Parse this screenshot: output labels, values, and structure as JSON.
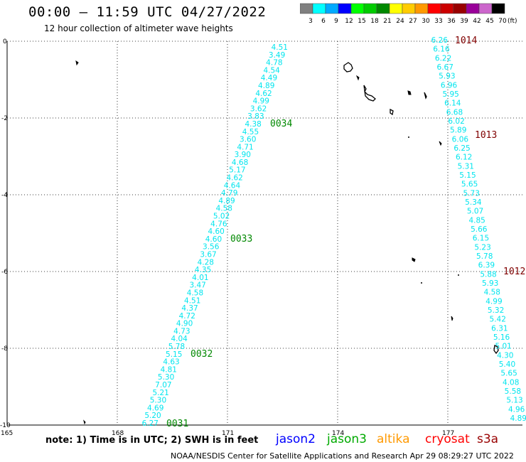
{
  "header": {
    "title": "00:00 — 11:59 UTC 04/27/2022",
    "subtitle": "12 hour collection of altimeter wave heights"
  },
  "color_scale": {
    "unit": "(ft)",
    "bins": [
      {
        "label": "3",
        "color": "#808080"
      },
      {
        "label": "6",
        "color": "#00ffff"
      },
      {
        "label": "9",
        "color": "#00aaff"
      },
      {
        "label": "12",
        "color": "#0000ff"
      },
      {
        "label": "15",
        "color": "#00ff00"
      },
      {
        "label": "18",
        "color": "#00cc00"
      },
      {
        "label": "21",
        "color": "#008800"
      },
      {
        "label": "24",
        "color": "#ffff00"
      },
      {
        "label": "27",
        "color": "#ffcc00"
      },
      {
        "label": "30",
        "color": "#ff9900"
      },
      {
        "label": "33",
        "color": "#ff0000"
      },
      {
        "label": "36",
        "color": "#cc0000"
      },
      {
        "label": "39",
        "color": "#990000"
      },
      {
        "label": "42",
        "color": "#990099"
      },
      {
        "label": "45",
        "color": "#cc66cc"
      },
      {
        "label": "70",
        "color": "#000000"
      }
    ]
  },
  "map": {
    "x_ticks": [
      "165",
      "168",
      "171",
      "174",
      "177"
    ],
    "y_ticks": [
      "0",
      "-2",
      "-4",
      "-6",
      "-8",
      "-10"
    ],
    "track_color": "#00e5ee",
    "time_label_color": "#008800",
    "pass_label_color": "#800000",
    "track_left": {
      "values": [
        "4.51",
        "3.49",
        "4.78",
        "4.54",
        "4.49",
        "4.89",
        "4.62",
        "4.99",
        "3.62",
        "3.83",
        "4.38",
        "4.55",
        "3.60",
        "4.71",
        "3.90",
        "4.68",
        "5.17",
        "4.62",
        "4.64",
        "4.79",
        "4.89",
        "4.58",
        "5.02",
        "4.76",
        "4.60",
        "4.60",
        "3.56",
        "3.67",
        "4.28",
        "4.35",
        "4.01",
        "3.47",
        "4.58",
        "4.51",
        "4.37",
        "4.72",
        "4.90",
        "4.73",
        "4.04",
        "5.78",
        "5.15",
        "4.63",
        "4.81",
        "5.30",
        "7.07",
        "5.21",
        "5.30",
        "4.69",
        "5.20",
        "6.27"
      ],
      "time_labels": [
        "0034",
        "0033",
        "0032",
        "0031"
      ]
    },
    "track_right": {
      "values": [
        "6.26",
        "6.16",
        "6.22",
        "6.67",
        "5.93",
        "6.96",
        "5.95",
        "6.14",
        "6.68",
        "6.02",
        "5.89",
        "6.06",
        "6.25",
        "6.12",
        "5.31",
        "5.15",
        "5.65",
        "5.73",
        "5.34",
        "5.07",
        "4.85",
        "5.66",
        "6.15",
        "5.23",
        "5.78",
        "6.39",
        "5.88",
        "5.93",
        "4.58",
        "4.99",
        "5.32",
        "5.42",
        "6.31",
        "5.16",
        "5.01",
        "4.30",
        "5.40",
        "5.65",
        "4.08",
        "5.58",
        "5.13",
        "4.96",
        "4.89"
      ],
      "time_labels": [
        "1014",
        "1013",
        "1012"
      ]
    }
  },
  "footer": {
    "note": "note: 1) Time is in UTC; 2) SWH is in feet",
    "satellites": [
      {
        "label": "jason2",
        "color": "#0000ff"
      },
      {
        "label": "jason3",
        "color": "#00aa00"
      },
      {
        "label": "altika",
        "color": "#ff9900"
      },
      {
        "label": "cryosat",
        "color": "#ff0000"
      },
      {
        "label": "s3a",
        "color": "#990000"
      }
    ],
    "credit": "NOAA/NESDIS Center for Satellite Applications and Research   Apr 29 08:29:27 UTC 2022"
  }
}
